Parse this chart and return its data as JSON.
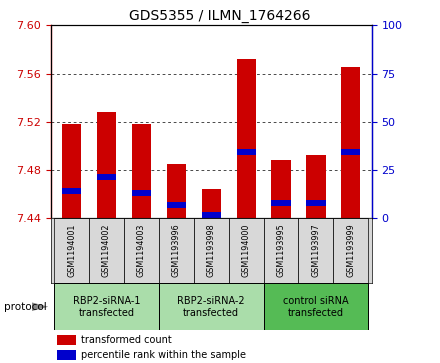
{
  "title": "GDS5355 / ILMN_1764266",
  "samples": [
    "GSM1194001",
    "GSM1194002",
    "GSM1194003",
    "GSM1193996",
    "GSM1193998",
    "GSM1194000",
    "GSM1193995",
    "GSM1193997",
    "GSM1193999"
  ],
  "red_values": [
    7.518,
    7.528,
    7.518,
    7.485,
    7.464,
    7.572,
    7.488,
    7.492,
    7.565
  ],
  "blue_values": [
    7.462,
    7.474,
    7.461,
    7.451,
    7.442,
    7.495,
    7.452,
    7.452,
    7.495
  ],
  "ylim_left": [
    7.44,
    7.6
  ],
  "yticks_left": [
    7.44,
    7.48,
    7.52,
    7.56,
    7.6
  ],
  "ylim_right": [
    0,
    100
  ],
  "yticks_right": [
    0,
    25,
    50,
    75,
    100
  ],
  "groups": [
    {
      "label": "RBP2-siRNA-1\ntransfected",
      "indices": [
        0,
        1,
        2
      ],
      "color": "#aaddaa"
    },
    {
      "label": "RBP2-siRNA-2\ntransfected",
      "indices": [
        3,
        4,
        5
      ],
      "color": "#aaddaa"
    },
    {
      "label": "control siRNA\ntransfected",
      "indices": [
        6,
        7,
        8
      ],
      "color": "#55bb55"
    }
  ],
  "bar_width": 0.55,
  "bar_color_red": "#cc0000",
  "bar_color_blue": "#0000cc",
  "bar_base": 7.44,
  "protocol_label": "protocol",
  "legend_red": "transformed count",
  "legend_blue": "percentile rank within the sample",
  "title_fontsize": 10,
  "tick_fontsize": 8,
  "label_fontsize": 7
}
